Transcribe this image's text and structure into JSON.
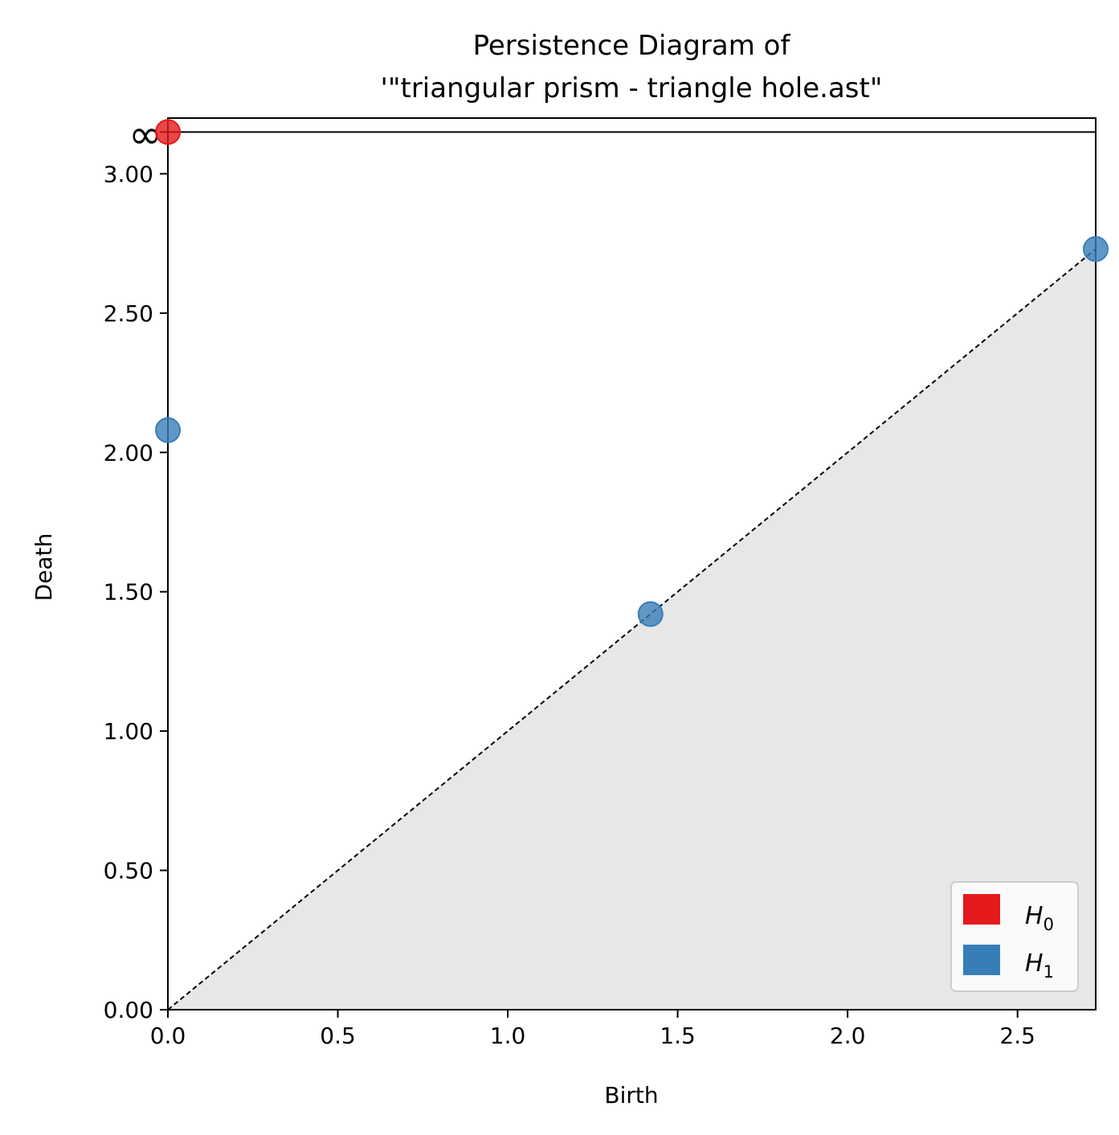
{
  "chart_data": {
    "type": "scatter",
    "title_line1": "Persistence Diagram of",
    "title_line2": "'\"triangular prism - triangle hole.ast\"",
    "xlabel": "Birth",
    "ylabel": "Death",
    "xlim": [
      0,
      2.73
    ],
    "ylim": [
      0,
      3.2
    ],
    "x_ticks": [
      0.0,
      0.5,
      1.0,
      1.5,
      2.0,
      2.5
    ],
    "x_tick_labels": [
      "0.0",
      "0.5",
      "1.0",
      "1.5",
      "2.0",
      "2.5"
    ],
    "y_ticks": [
      0.0,
      0.5,
      1.0,
      1.5,
      2.0,
      2.5,
      3.0
    ],
    "y_tick_labels": [
      "0.00",
      "0.50",
      "1.00",
      "1.50",
      "2.00",
      "2.50",
      "3.00"
    ],
    "infinity_label": "∞",
    "infinity_value": 3.15,
    "diagonal": true,
    "grid": false,
    "legend_position": "bottom-right",
    "series": [
      {
        "name": "H",
        "subscript": "0",
        "color": "#e41a1c",
        "points": [
          [
            0.0,
            "inf"
          ]
        ]
      },
      {
        "name": "H",
        "subscript": "1",
        "color": "#377eb8",
        "points": [
          [
            0.0,
            2.08
          ],
          [
            1.42,
            1.42
          ],
          [
            2.73,
            2.73
          ]
        ]
      }
    ]
  }
}
